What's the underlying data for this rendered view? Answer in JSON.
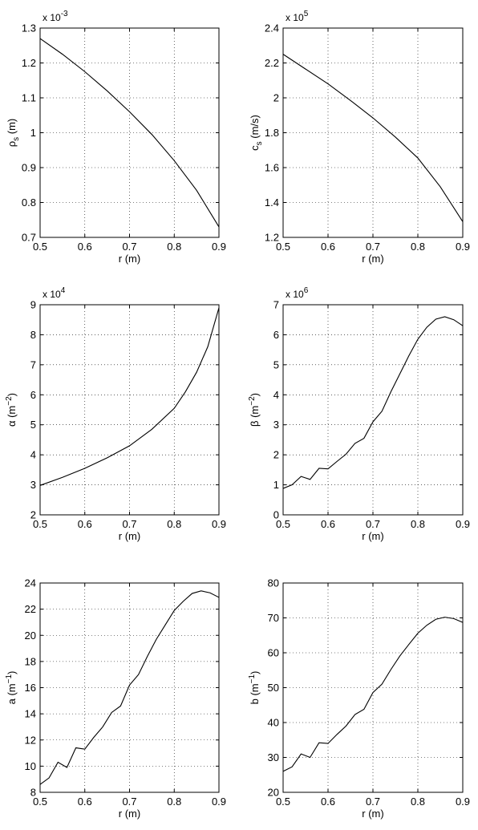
{
  "chart_data": [
    {
      "type": "line",
      "xlabel": "r (m)",
      "ylabel": {
        "base": "ρ",
        "sub": "s",
        "unit": "(m)"
      },
      "multiplier": {
        "base": "x 10",
        "exp": "-3"
      },
      "xlim": [
        0.5,
        0.9
      ],
      "ylim": [
        0.7,
        1.3
      ],
      "xticks": [
        "0.5",
        "0.6",
        "0.7",
        "0.8",
        "0.9"
      ],
      "yticks": [
        "0.7",
        "0.8",
        "0.9",
        "1",
        "1.1",
        "1.2",
        "1.3"
      ],
      "grid": true,
      "series": [
        {
          "x": [
            0.5,
            0.55,
            0.6,
            0.65,
            0.7,
            0.75,
            0.8,
            0.85,
            0.9
          ],
          "y": [
            1.27,
            1.225,
            1.175,
            1.12,
            1.06,
            0.995,
            0.92,
            0.835,
            0.73
          ]
        }
      ]
    },
    {
      "type": "line",
      "xlabel": "r (m)",
      "ylabel": {
        "base": "c",
        "sub": "s",
        "unit": "(m/s)"
      },
      "multiplier": {
        "base": "x 10",
        "exp": "5"
      },
      "xlim": [
        0.5,
        0.9
      ],
      "ylim": [
        1.2,
        2.4
      ],
      "xticks": [
        "0.5",
        "0.6",
        "0.7",
        "0.8",
        "0.9"
      ],
      "yticks": [
        "1.2",
        "1.4",
        "1.6",
        "1.8",
        "2",
        "2.2",
        "2.4"
      ],
      "grid": true,
      "series": [
        {
          "x": [
            0.5,
            0.55,
            0.6,
            0.65,
            0.7,
            0.75,
            0.8,
            0.85,
            0.9
          ],
          "y": [
            2.25,
            2.165,
            2.08,
            1.985,
            1.885,
            1.775,
            1.655,
            1.49,
            1.29
          ]
        }
      ]
    },
    {
      "type": "line",
      "xlabel": "r (m)",
      "ylabel": {
        "base": "α",
        "sup_unit": "(m",
        "exp": "−2",
        "close": ")"
      },
      "multiplier": {
        "base": "x 10",
        "exp": "4"
      },
      "xlim": [
        0.5,
        0.9
      ],
      "ylim": [
        2,
        9
      ],
      "xticks": [
        "0.5",
        "0.6",
        "0.7",
        "0.8",
        "0.9"
      ],
      "yticks": [
        "2",
        "3",
        "4",
        "5",
        "6",
        "7",
        "8",
        "9"
      ],
      "grid": true,
      "series": [
        {
          "x": [
            0.5,
            0.55,
            0.6,
            0.65,
            0.7,
            0.75,
            0.8,
            0.825,
            0.85,
            0.875,
            0.9
          ],
          "y": [
            2.98,
            3.25,
            3.55,
            3.9,
            4.3,
            4.85,
            5.55,
            6.1,
            6.75,
            7.6,
            8.9
          ]
        }
      ]
    },
    {
      "type": "line",
      "xlabel": "r (m)",
      "ylabel": {
        "base": "β",
        "sup_unit": "(m",
        "exp": "−2",
        "close": ")"
      },
      "multiplier": {
        "base": "x 10",
        "exp": "6"
      },
      "xlim": [
        0.5,
        0.9
      ],
      "ylim": [
        0,
        7
      ],
      "xticks": [
        "0.5",
        "0.6",
        "0.7",
        "0.8",
        "0.9"
      ],
      "yticks": [
        "0",
        "1",
        "2",
        "3",
        "4",
        "5",
        "6",
        "7"
      ],
      "grid": true,
      "series": [
        {
          "x": [
            0.5,
            0.52,
            0.54,
            0.56,
            0.58,
            0.6,
            0.62,
            0.64,
            0.66,
            0.68,
            0.7,
            0.72,
            0.74,
            0.76,
            0.78,
            0.8,
            0.82,
            0.84,
            0.86,
            0.88,
            0.9
          ],
          "y": [
            0.88,
            1.0,
            1.28,
            1.18,
            1.55,
            1.53,
            1.78,
            2.02,
            2.38,
            2.55,
            3.1,
            3.45,
            4.1,
            4.7,
            5.3,
            5.85,
            6.25,
            6.52,
            6.6,
            6.5,
            6.3
          ]
        }
      ]
    },
    {
      "type": "line",
      "xlabel": "r (m)",
      "ylabel": {
        "base": "a",
        "sup_unit": "(m",
        "exp": "−1",
        "close": ")"
      },
      "multiplier": null,
      "xlim": [
        0.5,
        0.9
      ],
      "ylim": [
        8,
        24
      ],
      "xticks": [
        "0.5",
        "0.6",
        "0.7",
        "0.8",
        "0.9"
      ],
      "yticks": [
        "8",
        "10",
        "12",
        "14",
        "16",
        "18",
        "20",
        "22",
        "24"
      ],
      "grid": true,
      "series": [
        {
          "x": [
            0.5,
            0.52,
            0.54,
            0.56,
            0.58,
            0.6,
            0.62,
            0.64,
            0.66,
            0.68,
            0.7,
            0.72,
            0.74,
            0.76,
            0.78,
            0.8,
            0.82,
            0.84,
            0.86,
            0.88,
            0.9
          ],
          "y": [
            8.6,
            9.1,
            10.3,
            9.9,
            11.4,
            11.3,
            12.2,
            13.0,
            14.1,
            14.6,
            16.2,
            17.0,
            18.4,
            19.7,
            20.8,
            21.9,
            22.6,
            23.2,
            23.4,
            23.25,
            22.9
          ]
        }
      ]
    },
    {
      "type": "line",
      "xlabel": "r (m)",
      "ylabel": {
        "base": "b",
        "sup_unit": "(m",
        "exp": "−1",
        "close": ")"
      },
      "multiplier": null,
      "xlim": [
        0.5,
        0.9
      ],
      "ylim": [
        20,
        80
      ],
      "xticks": [
        "0.5",
        "0.6",
        "0.7",
        "0.8",
        "0.9"
      ],
      "yticks": [
        "20",
        "30",
        "40",
        "50",
        "60",
        "70",
        "80"
      ],
      "grid": true,
      "series": [
        {
          "x": [
            0.5,
            0.52,
            0.54,
            0.56,
            0.58,
            0.6,
            0.62,
            0.64,
            0.66,
            0.68,
            0.7,
            0.72,
            0.74,
            0.76,
            0.78,
            0.8,
            0.82,
            0.84,
            0.86,
            0.88,
            0.9
          ],
          "y": [
            26.0,
            27.3,
            31.0,
            30.0,
            34.2,
            34.0,
            36.6,
            39.0,
            42.3,
            43.8,
            48.6,
            51.0,
            55.2,
            59.1,
            62.4,
            65.6,
            67.9,
            69.6,
            70.2,
            69.8,
            68.7
          ]
        }
      ]
    }
  ]
}
